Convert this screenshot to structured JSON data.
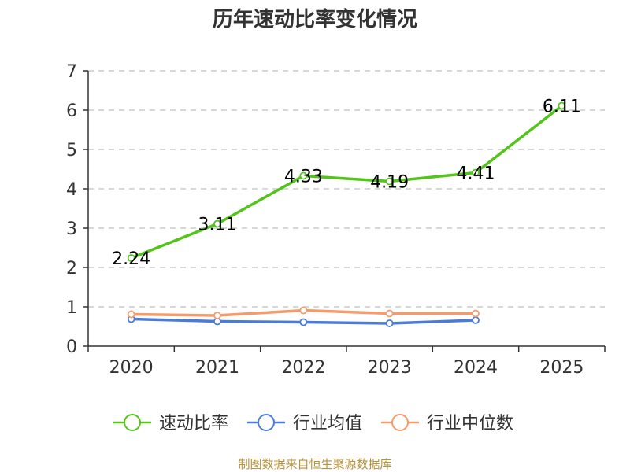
{
  "chart_data": {
    "type": "line",
    "title": "历年速动比率变化情况",
    "categories": [
      "2020",
      "2021",
      "2022",
      "2023",
      "2024",
      "2025"
    ],
    "yticks": [
      "0",
      "1",
      "2",
      "3",
      "4",
      "5",
      "6",
      "7"
    ],
    "ylim": [
      0,
      7
    ],
    "xlabel": "",
    "ylabel": "",
    "grid": true,
    "legend_position": "bottom",
    "series": [
      {
        "name": "速动比率",
        "color": "#52c41a",
        "values": [
          2.24,
          3.11,
          4.33,
          4.19,
          4.41,
          6.11
        ],
        "labels": [
          "2.24",
          "3.11",
          "4.33",
          "4.19",
          "4.41",
          "6.11"
        ]
      },
      {
        "name": "行业均值",
        "color": "#4a7bd8",
        "values": [
          0.69,
          0.63,
          0.61,
          0.58,
          0.66,
          null
        ]
      },
      {
        "name": "行业中位数",
        "color": "#f59a6a",
        "values": [
          0.81,
          0.78,
          0.91,
          0.83,
          0.83,
          null
        ]
      }
    ]
  },
  "source_text": "制图数据来自恒生聚源数据库"
}
